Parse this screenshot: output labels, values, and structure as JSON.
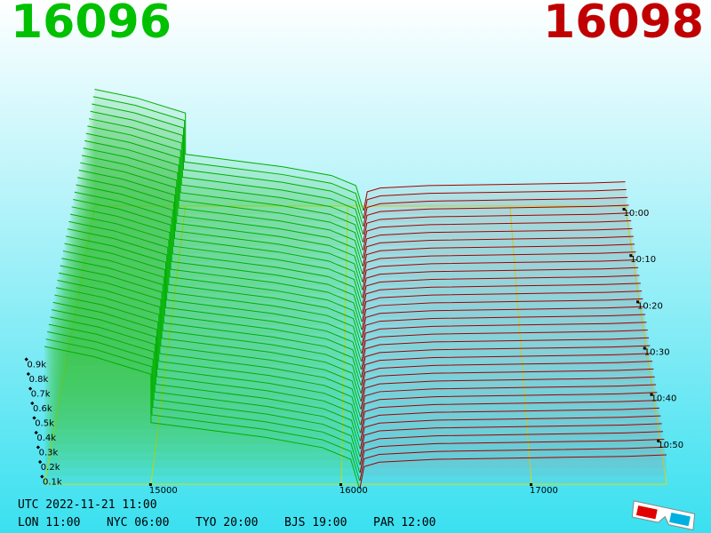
{
  "chart_data": {
    "type": "depth3d",
    "best_bid": 16096,
    "best_ask": 16098,
    "xlim": [
      14440,
      17710
    ],
    "xticks": [
      15000,
      16000,
      17000
    ],
    "ylim": [
      0,
      1000
    ],
    "yticks": [
      {
        "value": 100,
        "label": "0.1k"
      },
      {
        "value": 200,
        "label": "0.2k"
      },
      {
        "value": 300,
        "label": "0.3k"
      },
      {
        "value": 400,
        "label": "0.4k"
      },
      {
        "value": 500,
        "label": "0.5k"
      },
      {
        "value": 600,
        "label": "0.6k"
      },
      {
        "value": 700,
        "label": "0.7k"
      },
      {
        "value": 800,
        "label": "0.8k"
      },
      {
        "value": 900,
        "label": "0.9k"
      }
    ],
    "time_labels": [
      "10:00",
      "10:10",
      "10:20",
      "10:30",
      "10:40",
      "10:50"
    ],
    "series": [
      {
        "color": "#00b000",
        "x": [
          14440,
          14700,
          15000,
          15000,
          15300,
          15600,
          15900,
          16050,
          16096
        ],
        "values": [
          970,
          900,
          780,
          450,
          400,
          350,
          280,
          200,
          0
        ]
      },
      {
        "color": "#a00000",
        "x": [
          16098,
          16120,
          16200,
          16500,
          17000,
          17500,
          17710
        ],
        "values": [
          0,
          150,
          180,
          200,
          210,
          220,
          230
        ]
      }
    ]
  },
  "footer": {
    "utc": "UTC 2022-11-21 11:00",
    "cities": [
      "LON 11:00",
      "NYC 06:00",
      "TYO 20:00",
      "BJS 19:00",
      "PAR 12:00"
    ]
  }
}
